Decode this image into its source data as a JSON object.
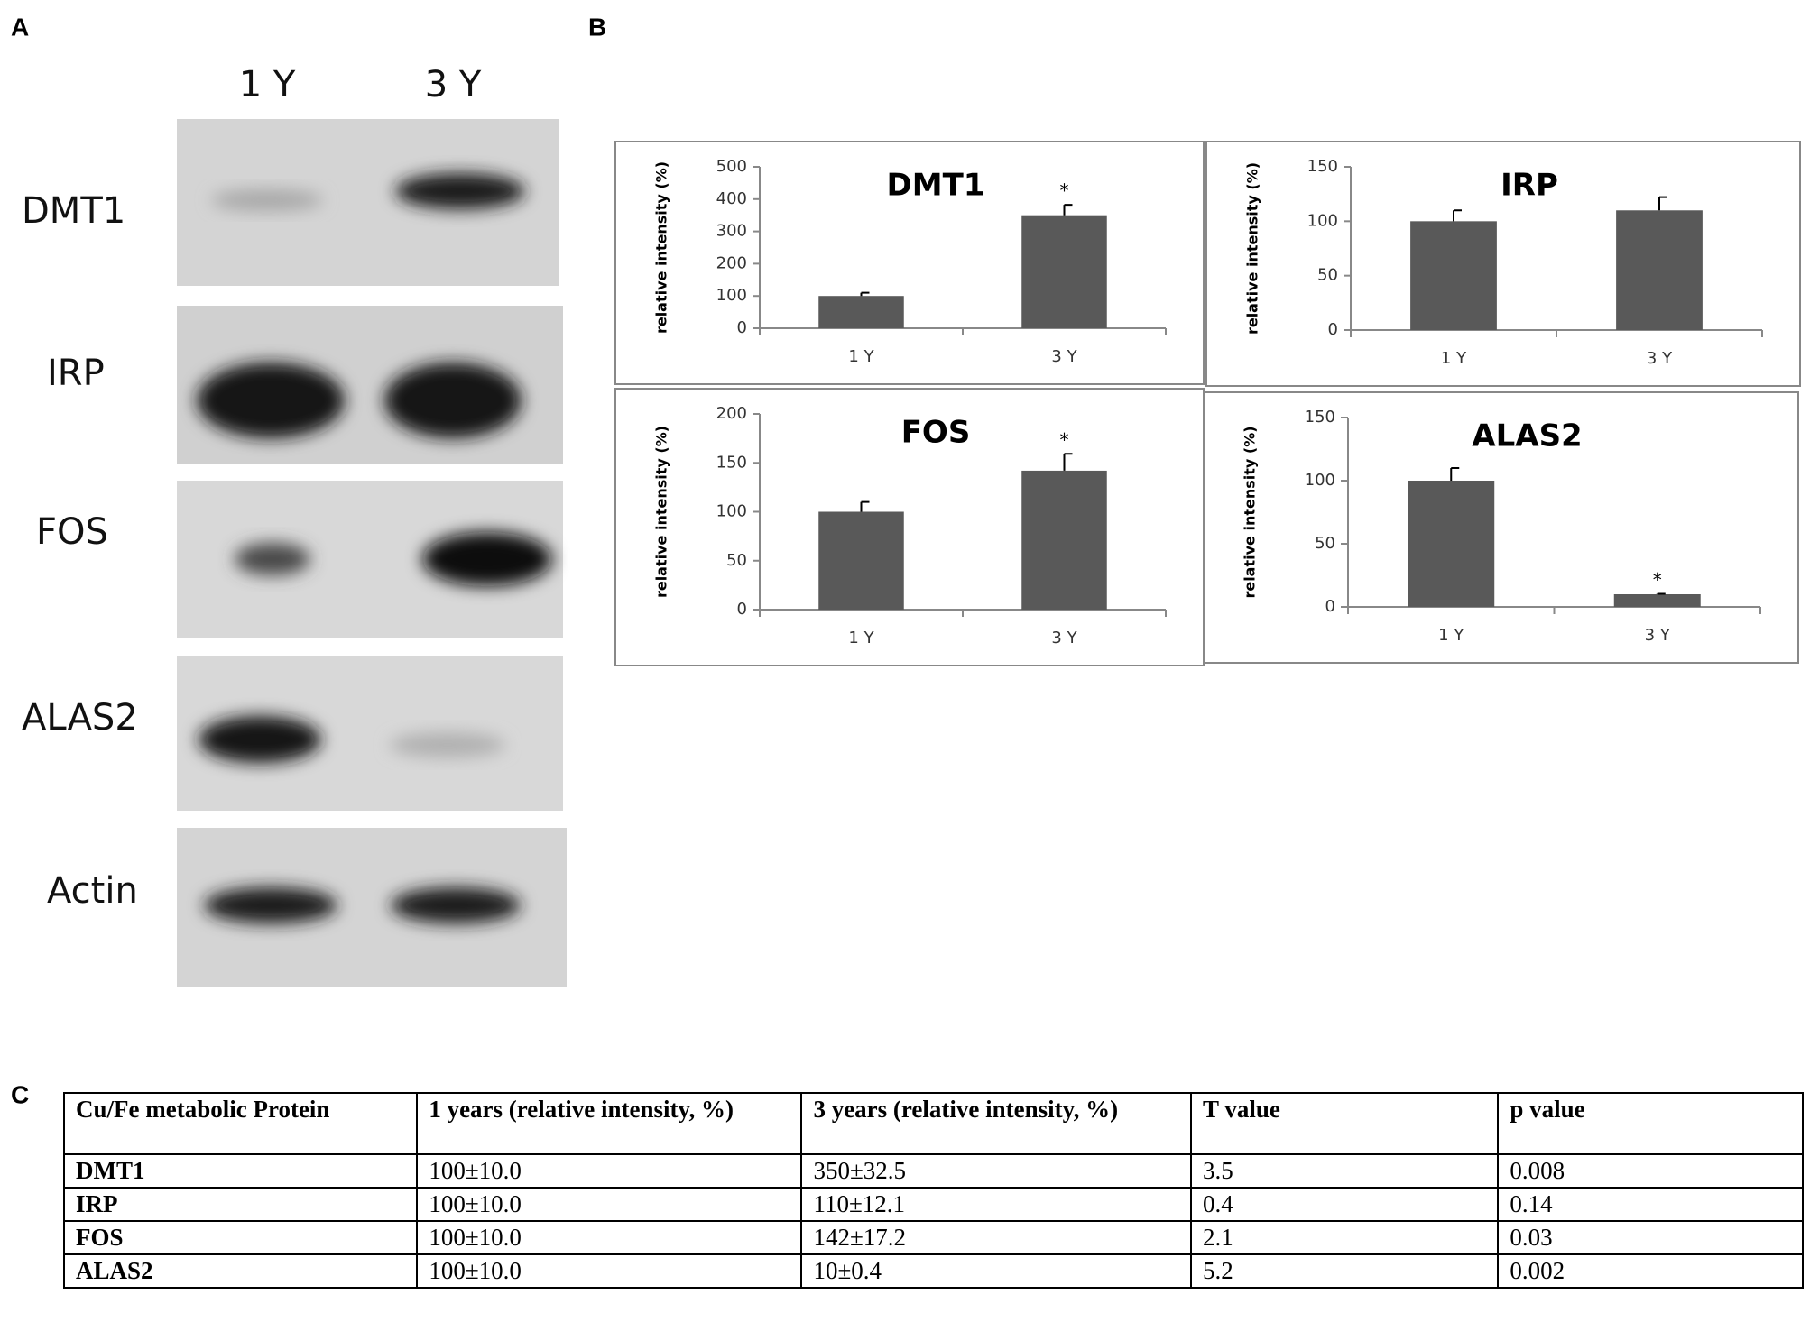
{
  "panels": {
    "a": "A",
    "b": "B",
    "c": "C"
  },
  "blot": {
    "lanes": [
      "1 Y",
      "3 Y"
    ],
    "proteins": [
      "DMT1",
      "IRP",
      "FOS",
      "ALAS2",
      "Actin"
    ]
  },
  "chart_data": [
    {
      "type": "bar",
      "title": "DMT1",
      "y_label": "relative intensity (%)",
      "categories": [
        "1 Y",
        "3 Y"
      ],
      "values": [
        100,
        350
      ],
      "errors": [
        10,
        32.5
      ],
      "markers": [
        null,
        "*"
      ],
      "color": "#595959",
      "ylim": [
        0,
        500
      ],
      "yticks": [
        0,
        100,
        200,
        300,
        400,
        500
      ]
    },
    {
      "type": "bar",
      "title": "IRP",
      "y_label": "relative intensity (%)",
      "categories": [
        "1 Y",
        "3 Y"
      ],
      "values": [
        100,
        110
      ],
      "errors": [
        10,
        12.1
      ],
      "markers": [
        null,
        null
      ],
      "color": "#595959",
      "ylim": [
        0,
        150
      ],
      "yticks": [
        0,
        50,
        100,
        150
      ]
    },
    {
      "type": "bar",
      "title": "FOS",
      "y_label": "relative intensity (%)",
      "categories": [
        "1 Y",
        "3 Y"
      ],
      "values": [
        100,
        142
      ],
      "errors": [
        10,
        17.2
      ],
      "markers": [
        null,
        "*"
      ],
      "color": "#595959",
      "ylim": [
        0,
        200
      ],
      "yticks": [
        0,
        50,
        100,
        150,
        200
      ]
    },
    {
      "type": "bar",
      "title": "ALAS2",
      "y_label": "relative intensity (%)",
      "categories": [
        "1 Y",
        "3 Y"
      ],
      "values": [
        100,
        10
      ],
      "errors": [
        10,
        0.4
      ],
      "markers": [
        null,
        "*"
      ],
      "color": "#595959",
      "ylim": [
        0,
        150
      ],
      "yticks": [
        0,
        50,
        100,
        150
      ]
    }
  ],
  "table": {
    "header": [
      "Cu/Fe metabolic Protein",
      "1 years (relative intensity, %)",
      "3 years (relative intensity, %)",
      "T value",
      "p value"
    ],
    "rows": [
      [
        "DMT1",
        "100±10.0",
        "350±32.5",
        "3.5",
        "0.008"
      ],
      [
        "IRP",
        "100±10.0",
        "110±12.1",
        "0.4",
        "0.14"
      ],
      [
        "FOS",
        "100±10.0",
        "142±17.2",
        "2.1",
        "0.03"
      ],
      [
        "ALAS2",
        "100±10.0",
        "10±0.4",
        "5.2",
        "0.002"
      ]
    ]
  }
}
